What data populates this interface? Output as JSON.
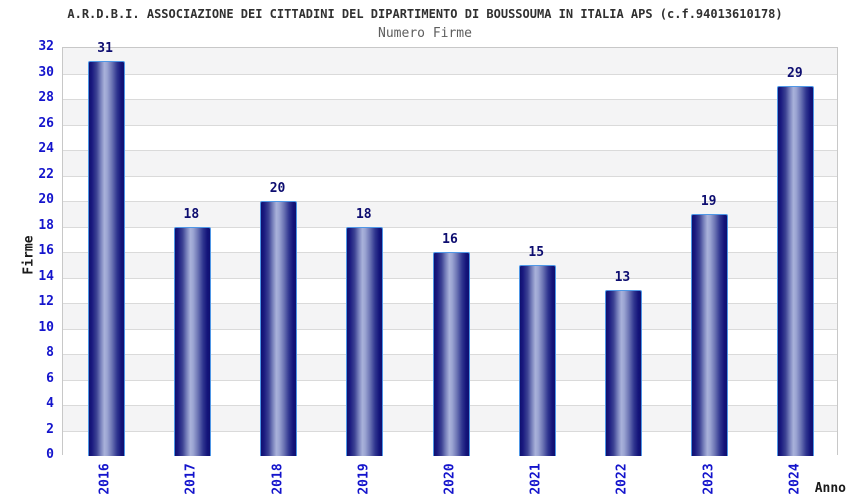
{
  "chart_data": {
    "type": "bar",
    "title": "A.R.D.B.I. ASSOCIAZIONE DEI CITTADINI DEL DIPARTIMENTO DI BOUSSOUMA IN ITALIA APS (c.f.94013610178)",
    "subtitle": "Numero Firme",
    "xlabel": "Anno",
    "ylabel": "Firme",
    "categories": [
      "2016",
      "2017",
      "2018",
      "2019",
      "2020",
      "2021",
      "2022",
      "2023",
      "2024"
    ],
    "values": [
      31,
      18,
      20,
      18,
      16,
      15,
      13,
      19,
      29
    ],
    "ylim": [
      0,
      32
    ],
    "ytick_step": 2,
    "grid": true,
    "legend": "none",
    "colors": {
      "tick_label": "#1414cc",
      "value_label": "#0d0d70",
      "title": "#303030",
      "subtitle": "#5e5e5e",
      "band_gray": "#f4f4f5",
      "band_white": "#ffffff",
      "gridline": "#dadada",
      "plot_border": "#c8c8c8",
      "bar_outline": "#4f97e6",
      "bar_dark": "#0f0f70",
      "bar_light": "#a9b2da"
    }
  }
}
